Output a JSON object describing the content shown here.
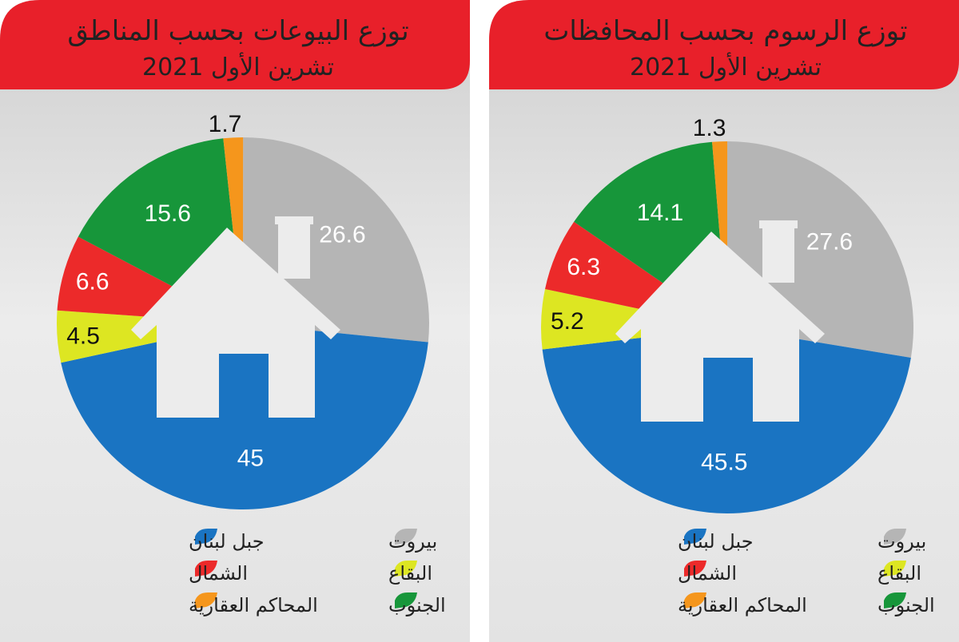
{
  "colors": {
    "beirut": "#b5b5b5",
    "mount_lebanon": "#1a74c2",
    "bekaa": "#dde622",
    "north": "#ec2a2a",
    "south": "#17963a",
    "courts": "#f5961c",
    "header_red": "#e8202a",
    "panel_grey": "#e2e2e2",
    "header_text": "#222222"
  },
  "chart_data": [
    {
      "type": "pie",
      "title_line1": "توزع البيوعات بحسب المناطق",
      "title_line2": "تشرين الأول 2021",
      "slices": [
        {
          "key": "beirut",
          "label": "بيروت",
          "value": 26.6,
          "value_label": "26.6",
          "color": "#b5b5b5"
        },
        {
          "key": "mount_lebanon",
          "label": "جبل لبنان",
          "value": 45,
          "value_label": "45",
          "color": "#1a74c2"
        },
        {
          "key": "bekaa",
          "label": "البقاع",
          "value": 4.5,
          "value_label": "4.5",
          "color": "#dde622"
        },
        {
          "key": "north",
          "label": "الشمال",
          "value": 6.6,
          "value_label": "6.6",
          "color": "#ec2a2a"
        },
        {
          "key": "south",
          "label": "الجنوب",
          "value": 15.6,
          "value_label": "15.6",
          "color": "#17963a"
        },
        {
          "key": "courts",
          "label": "المحاكم العقارية",
          "value": 1.7,
          "value_label": "1.7",
          "color": "#f5961c"
        }
      ],
      "legend": [
        {
          "key": "beirut",
          "label": "بيروت"
        },
        {
          "key": "mount_lebanon",
          "label": "جبل لبنان"
        },
        {
          "key": "bekaa",
          "label": "البقاع"
        },
        {
          "key": "north",
          "label": "الشمال"
        },
        {
          "key": "south",
          "label": "الجنوب"
        },
        {
          "key": "courts",
          "label": "المحاكم العقارية"
        }
      ]
    },
    {
      "type": "pie",
      "title_line1": "توزع الرسوم بحسب المحافظات",
      "title_line2": "تشرين الأول 2021",
      "slices": [
        {
          "key": "beirut",
          "label": "بيروت",
          "value": 27.6,
          "value_label": "27.6",
          "color": "#b5b5b5"
        },
        {
          "key": "mount_lebanon",
          "label": "جبل لبنان",
          "value": 45.5,
          "value_label": "45.5",
          "color": "#1a74c2"
        },
        {
          "key": "bekaa",
          "label": "البقاع",
          "value": 5.2,
          "value_label": "5.2",
          "color": "#dde622"
        },
        {
          "key": "north",
          "label": "الشمال",
          "value": 6.3,
          "value_label": "6.3",
          "color": "#ec2a2a"
        },
        {
          "key": "south",
          "label": "الجنوب",
          "value": 14.1,
          "value_label": "14.1",
          "color": "#17963a"
        },
        {
          "key": "courts",
          "label": "المحاكم العقارية",
          "value": 1.3,
          "value_label": "1.3",
          "color": "#f5961c"
        }
      ],
      "legend": [
        {
          "key": "beirut",
          "label": "بيروت"
        },
        {
          "key": "mount_lebanon",
          "label": "جبل لبنان"
        },
        {
          "key": "bekaa",
          "label": "البقاع"
        },
        {
          "key": "north",
          "label": "الشمال"
        },
        {
          "key": "south",
          "label": "الجنوب"
        },
        {
          "key": "courts",
          "label": "المحاكم العقارية"
        }
      ]
    }
  ]
}
